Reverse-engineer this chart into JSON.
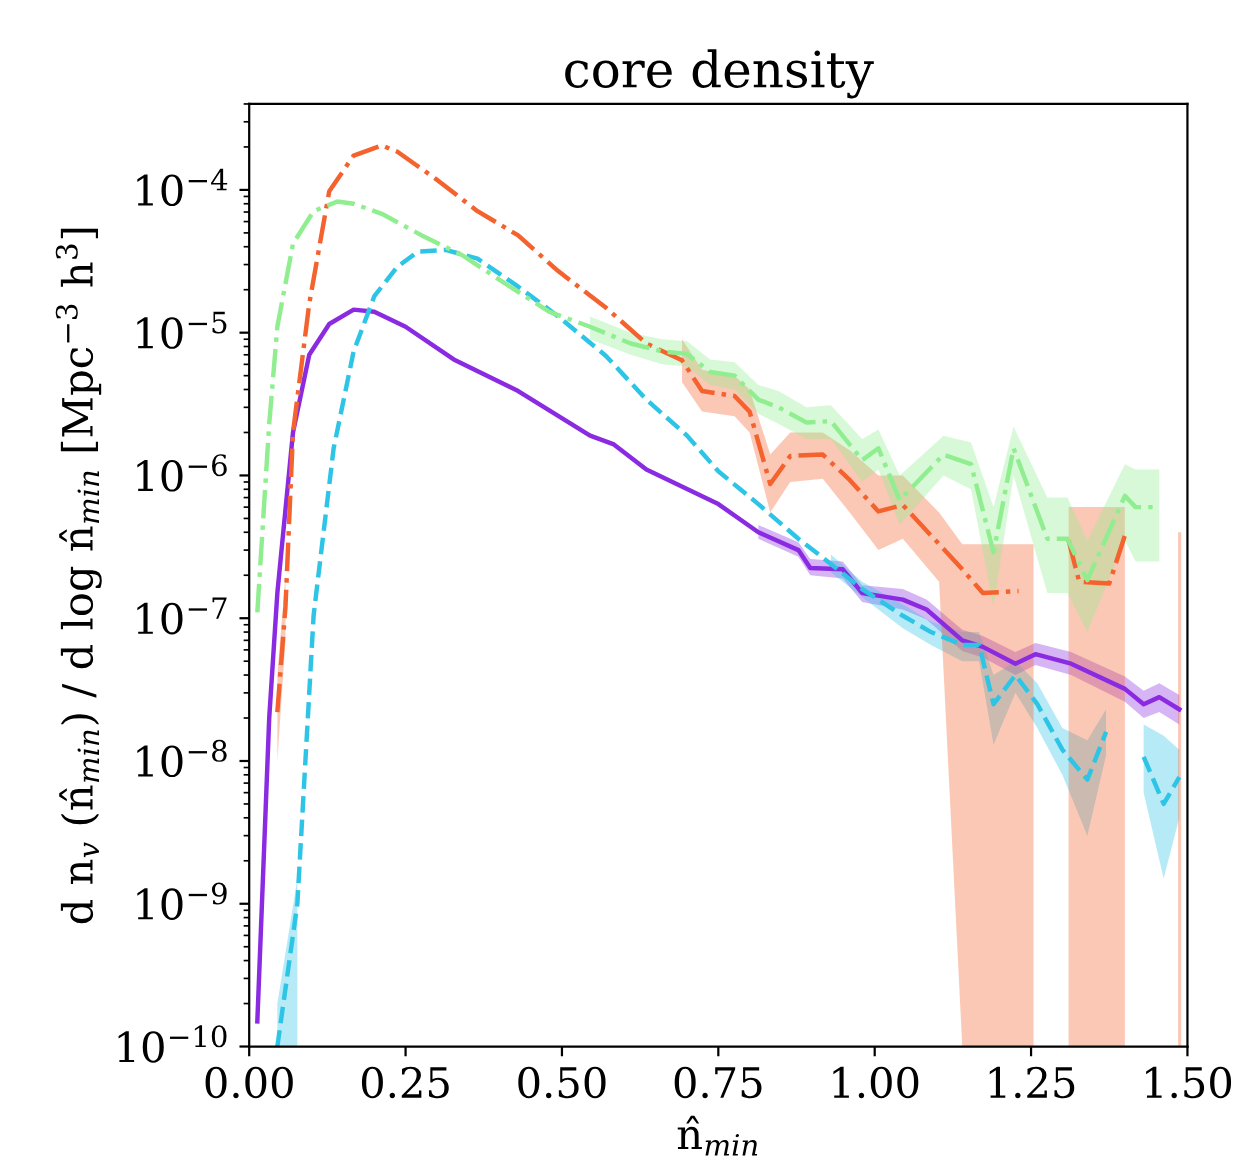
{
  "chart_data": {
    "type": "line",
    "title": "core density",
    "xlabel": "n̂$_{min}$",
    "ylabel": "d n$_{v}$ (n̂$_{min}$) / d log n̂$_{min}$ [Mpc$^{−3}$ h$^{3}$]",
    "log": "y",
    "grid": false,
    "xlim": [
      0,
      1.5
    ],
    "xticks": [
      {
        "value": 0,
        "label": "0.00"
      },
      {
        "value": 0.25,
        "label": "0.25"
      },
      {
        "value": 0.5,
        "label": "0.50"
      },
      {
        "value": 0.75,
        "label": "0.75"
      },
      {
        "value": 1.0,
        "label": "1.00"
      },
      {
        "value": 1.25,
        "label": "1.25"
      },
      {
        "value": 1.5,
        "label": "1.50"
      }
    ],
    "ylim": [
      1e-10,
      0.0004
    ],
    "yticks": [
      {
        "value": 1e-10,
        "label": "10$^{−10}$"
      },
      {
        "value": 1e-09,
        "label": "10$^{−9}$"
      },
      {
        "value": 1e-08,
        "label": "10$^{−8}$"
      },
      {
        "value": 1e-07,
        "label": "10$^{−7}$"
      },
      {
        "value": 1e-06,
        "label": "10$^{−6}$"
      },
      {
        "value": 1e-05,
        "label": "10$^{−5}$"
      },
      {
        "value": 0.0001,
        "label": "10$^{−4}$"
      }
    ],
    "series": [
      {
        "color": "#8a2be2",
        "line_style": "solid",
        "x": [
          0.013,
          0.032,
          0.045,
          0.07,
          0.096,
          0.128,
          0.167,
          0.2,
          0.25,
          0.327,
          0.43,
          0.545,
          0.583,
          0.635,
          0.75,
          0.814,
          0.878,
          0.897,
          0.949,
          0.98,
          1.045,
          1.083,
          1.14,
          1.173,
          1.225,
          1.257,
          1.314,
          1.4,
          1.43,
          1.455,
          1.487
        ],
        "values": [
          1.5e-10,
          2e-08,
          1.5e-07,
          2e-06,
          7e-06,
          1.15e-05,
          1.45e-05,
          1.4e-05,
          1.1e-05,
          6.5e-06,
          3.9e-06,
          1.9e-06,
          1.65e-06,
          1.1e-06,
          6.3e-07,
          4e-07,
          3e-07,
          2.25e-07,
          2.2e-07,
          1.5e-07,
          1.35e-07,
          1.15e-07,
          7e-08,
          6.3e-08,
          4.8e-08,
          5.6e-08,
          4.8e-08,
          3.2e-08,
          2.5e-08,
          2.8e-08,
          2.3e-08
        ],
        "lower": [
          null,
          null,
          null,
          null,
          null,
          null,
          null,
          null,
          null,
          null,
          null,
          null,
          null,
          null,
          null,
          3.6e-07,
          2.7e-07,
          2e-07,
          1.9e-07,
          1.3e-07,
          1.15e-07,
          9.8e-08,
          5.9e-08,
          5.3e-08,
          4e-08,
          4.7e-08,
          4e-08,
          2.6e-08,
          2e-08,
          2.2e-08,
          1.8e-08
        ],
        "upper": [
          null,
          null,
          null,
          null,
          null,
          null,
          null,
          null,
          null,
          null,
          null,
          null,
          null,
          null,
          null,
          4.5e-07,
          3.4e-07,
          2.6e-07,
          2.5e-07,
          1.7e-07,
          1.6e-07,
          1.35e-07,
          8.3e-08,
          7.5e-08,
          5.8e-08,
          6.7e-08,
          5.8e-08,
          3.9e-08,
          3.1e-08,
          3.5e-08,
          2.9e-08
        ]
      },
      {
        "color": "#2ec4e6",
        "line_style": "dashed",
        "x": [
          0.045,
          0.077,
          0.103,
          0.135,
          0.167,
          0.2,
          0.237,
          0.27,
          0.314,
          0.365,
          0.43,
          0.494,
          0.57,
          0.635,
          0.7,
          0.75,
          0.814,
          0.878,
          0.93,
          0.98,
          1.045,
          1.09,
          1.14,
          1.167,
          1.19,
          1.225,
          1.26,
          1.3,
          1.34,
          1.37,
          1.4,
          1.43,
          1.462,
          1.487
        ],
        "values": [
          1e-10,
          1e-09,
          1.05e-07,
          1.55e-06,
          7.4e-06,
          1.8e-05,
          2.9e-05,
          3.7e-05,
          3.8e-05,
          3.3e-05,
          2.1e-05,
          1.3e-05,
          6.9e-06,
          3.4e-06,
          1.9e-06,
          1.07e-06,
          6.3e-07,
          3.6e-07,
          2.4e-07,
          1.6e-07,
          1.04e-07,
          8e-08,
          6.5e-08,
          6.5e-08,
          2.5e-08,
          4e-08,
          2.5e-08,
          1.2e-08,
          7.4e-09,
          1.6e-08,
          null,
          1.07e-08,
          5e-09,
          7.7e-09
        ],
        "lower": [
          1e-10,
          1e-10,
          null,
          null,
          null,
          null,
          null,
          null,
          null,
          null,
          null,
          null,
          null,
          null,
          null,
          null,
          null,
          null,
          2.1e-07,
          1.4e-07,
          8.5e-08,
          6.5e-08,
          5e-08,
          5e-08,
          1.3e-08,
          3e-08,
          1.7e-08,
          8e-09,
          3e-09,
          1.1e-08,
          null,
          6e-09,
          1.5e-09,
          4e-09
        ],
        "upper": [
          2e-10,
          1.5e-09,
          null,
          null,
          null,
          null,
          null,
          null,
          null,
          null,
          null,
          null,
          null,
          null,
          null,
          null,
          null,
          null,
          2.8e-07,
          1.8e-07,
          1.25e-07,
          9.5e-08,
          8e-08,
          8e-08,
          4e-08,
          5e-08,
          3.5e-08,
          1.7e-08,
          1.4e-08,
          2.3e-08,
          null,
          1.8e-08,
          1.5e-08,
          1.2e-08
        ]
      },
      {
        "color": "#f4622d",
        "line_style": "dashdot",
        "x": [
          0.045,
          0.058,
          0.07,
          0.096,
          0.128,
          0.167,
          0.212,
          0.237,
          0.3,
          0.365,
          0.43,
          0.494,
          0.57,
          0.635,
          0.692,
          0.724,
          0.776,
          0.8,
          0.833,
          0.865,
          0.917,
          0.96,
          1.006,
          1.045,
          1.103,
          1.14,
          1.173,
          1.23,
          1.254,
          1.28,
          1.31,
          1.327,
          1.375,
          1.4,
          1.44,
          1.485,
          1.49
        ],
        "values": [
          2.2e-08,
          1.2e-07,
          2e-06,
          1.6e-05,
          9.8e-05,
          0.000174,
          0.000205,
          0.000185,
          0.000118,
          7.1e-05,
          4.8e-05,
          2.7e-05,
          1.5e-05,
          8.4e-06,
          6.4e-06,
          3.9e-06,
          3.6e-06,
          2.8e-06,
          8.7e-07,
          1.37e-06,
          1.4e-06,
          9.3e-07,
          5.6e-07,
          6.2e-07,
          3.3e-07,
          2.2e-07,
          1.5e-07,
          1.55e-07,
          null,
          null,
          3.5e-07,
          1.8e-07,
          1.75e-07,
          3.8e-07,
          null,
          null,
          null
        ],
        "lower": [
          1e-08,
          7e-08,
          null,
          null,
          null,
          null,
          null,
          null,
          null,
          null,
          null,
          null,
          null,
          null,
          4.5e-06,
          2.8e-06,
          2.6e-06,
          2e-06,
          5.5e-07,
          9e-07,
          9.5e-07,
          5.5e-07,
          3e-07,
          3.6e-07,
          1.8e-07,
          1e-10,
          1e-10,
          1e-10,
          1e-10,
          null,
          1e-10,
          1e-10,
          1e-10,
          1e-10,
          null,
          1e-10,
          1e-10
        ],
        "upper": [
          4e-08,
          2e-07,
          null,
          null,
          null,
          null,
          null,
          null,
          null,
          null,
          null,
          null,
          null,
          null,
          9e-06,
          5.5e-06,
          5e-06,
          4e-06,
          1.4e-06,
          2e-06,
          2e-06,
          1.5e-06,
          1e-06,
          1e-06,
          5.5e-07,
          3.3e-07,
          3.3e-07,
          3.3e-07,
          3.3e-07,
          null,
          6e-07,
          6e-07,
          6e-07,
          6e-07,
          null,
          4e-07,
          4e-07
        ]
      },
      {
        "color": "#90ee90",
        "line_style": "dashdot",
        "x": [
          0.013,
          0.032,
          0.045,
          0.07,
          0.103,
          0.141,
          0.167,
          0.212,
          0.276,
          0.34,
          0.417,
          0.48,
          0.545,
          0.61,
          0.66,
          0.7,
          0.737,
          0.776,
          0.814,
          0.846,
          0.891,
          0.93,
          0.98,
          1.006,
          1.04,
          1.11,
          1.154,
          1.19,
          1.222,
          1.276,
          1.308,
          1.34,
          1.4,
          1.417,
          1.455
        ],
        "values": [
          1.1e-07,
          2.3e-06,
          1.1e-05,
          4.2e-05,
          7.1e-05,
          8.3e-05,
          8e-05,
          6.8e-05,
          4.8e-05,
          3.5e-05,
          2.1e-05,
          1.4e-05,
          1.1e-05,
          8.4e-06,
          7.4e-06,
          7.1e-06,
          5.3e-06,
          5e-06,
          3.4e-06,
          3e-06,
          2.35e-06,
          2.4e-06,
          1.28e-06,
          1.55e-06,
          6.7e-07,
          1.4e-06,
          1.2e-06,
          2.9e-07,
          1.55e-06,
          3.6e-07,
          3.6e-07,
          1.85e-07,
          7.2e-07,
          6e-07,
          6e-07
        ],
        "lower": [
          null,
          null,
          null,
          null,
          null,
          null,
          null,
          null,
          null,
          null,
          null,
          null,
          9e-06,
          7e-06,
          6e-06,
          5.8e-06,
          4.3e-06,
          4e-06,
          2.7e-06,
          2.3e-06,
          1.8e-06,
          1.8e-06,
          9e-07,
          1.1e-06,
          4.5e-07,
          1e-06,
          8e-07,
          1.2e-07,
          1e-06,
          1.5e-07,
          1.5e-07,
          8e-08,
          3.5e-07,
          2.5e-07,
          2.5e-07
        ],
        "upper": [
          null,
          null,
          null,
          null,
          null,
          null,
          null,
          null,
          null,
          null,
          null,
          null,
          1.3e-05,
          1e-05,
          9e-06,
          8.7e-06,
          6.5e-06,
          6.2e-06,
          4.3e-06,
          3.9e-06,
          3e-06,
          3.1e-06,
          1.8e-06,
          2.1e-06,
          1e-06,
          1.9e-06,
          1.7e-06,
          6e-07,
          2.2e-06,
          7e-07,
          7e-07,
          3.5e-07,
          1.2e-06,
          1.1e-06,
          1.1e-06
        ]
      }
    ]
  }
}
